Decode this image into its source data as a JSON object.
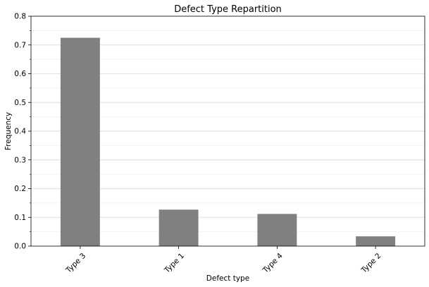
{
  "chart_data": {
    "type": "bar",
    "title": "Defect Type Repartition",
    "xlabel": "Defect type",
    "ylabel": "Frequency",
    "categories": [
      "Type 3",
      "Type 1",
      "Type 4",
      "Type 2"
    ],
    "values": [
      0.725,
      0.127,
      0.112,
      0.034
    ],
    "ylim": [
      0,
      0.8
    ],
    "yticks": [
      "0.0",
      "0.1",
      "0.2",
      "0.3",
      "0.4",
      "0.5",
      "0.6",
      "0.7",
      "0.8"
    ],
    "bar_color": "#808080",
    "grid": true,
    "legend": "none"
  }
}
